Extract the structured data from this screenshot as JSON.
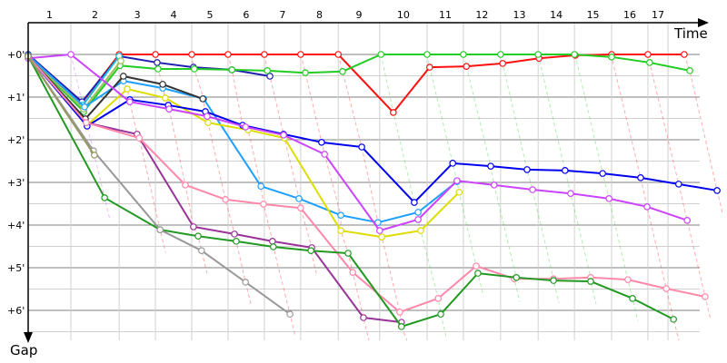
{
  "chart_data": {
    "type": "line",
    "title": "",
    "xlabel": "Time",
    "ylabel": "Gap",
    "y_unit": "minutes",
    "x_unit": "minutes",
    "ylim": [
      0,
      6.6
    ],
    "xlim": [
      0,
      16.4
    ],
    "y_ticks": [
      0,
      1,
      2,
      3,
      4,
      5,
      6
    ],
    "y_tick_labels": [
      "+0'",
      "+1'",
      "+2'",
      "+3'",
      "+4'",
      "+5'",
      "+6'"
    ],
    "lap_labels": [
      "1",
      "2",
      "3",
      "4",
      "5",
      "6",
      "7",
      "8",
      "9",
      "10",
      "11",
      "12",
      "13",
      "14",
      "15",
      "16",
      "17"
    ],
    "lap_boundaries": [
      0,
      1.0,
      2.13,
      2.98,
      3.83,
      4.68,
      5.53,
      6.38,
      7.26,
      8.23,
      9.34,
      10.19,
      11.06,
      11.94,
      12.79,
      13.66,
      14.51,
      14.98
    ],
    "grid": true,
    "series": [
      {
        "name": "red",
        "color": "#ff1010",
        "points": [
          [
            0,
            0
          ],
          [
            1.26,
            1.13
          ],
          [
            2.13,
            0
          ],
          [
            2.98,
            0
          ],
          [
            3.83,
            0
          ],
          [
            4.68,
            0
          ],
          [
            5.53,
            0
          ],
          [
            6.38,
            0
          ],
          [
            7.26,
            0
          ],
          [
            8.55,
            1.36
          ],
          [
            9.4,
            0.3
          ],
          [
            10.26,
            0.28
          ],
          [
            11.11,
            0.21
          ],
          [
            11.96,
            0.09
          ],
          [
            12.81,
            0.02
          ],
          [
            13.66,
            0
          ],
          [
            14.51,
            0
          ],
          [
            15.36,
            0
          ]
        ]
      },
      {
        "name": "navy",
        "color": "#2020b0",
        "points": [
          [
            0,
            0
          ],
          [
            1.26,
            1.11
          ],
          [
            2.13,
            0.04
          ],
          [
            3.02,
            0.19
          ],
          [
            3.87,
            0.3
          ],
          [
            4.77,
            0.36
          ],
          [
            5.66,
            0.51
          ]
        ]
      },
      {
        "name": "green",
        "color": "#22cc22",
        "points": [
          [
            0,
            0.04
          ],
          [
            1.3,
            1.34
          ],
          [
            2.15,
            0.26
          ],
          [
            3.04,
            0.34
          ],
          [
            3.89,
            0.34
          ],
          [
            4.77,
            0.36
          ],
          [
            5.6,
            0.38
          ],
          [
            6.49,
            0.43
          ],
          [
            7.36,
            0.4
          ],
          [
            8.26,
            0
          ],
          [
            9.34,
            0
          ],
          [
            10.19,
            0
          ],
          [
            11.06,
            0
          ],
          [
            11.94,
            0
          ],
          [
            12.79,
            0
          ],
          [
            13.66,
            0.06
          ],
          [
            14.55,
            0.19
          ],
          [
            15.49,
            0.38
          ]
        ]
      },
      {
        "name": "teal",
        "color": "#22bbcc",
        "points": [
          [
            0,
            0.02
          ],
          [
            1.28,
            1.19
          ],
          [
            2.13,
            0.04
          ]
        ]
      },
      {
        "name": "light-olive",
        "color": "#a0c060",
        "points": [
          [
            0,
            0.04
          ],
          [
            1.3,
            1.28
          ],
          [
            2.17,
            0.15
          ]
        ]
      },
      {
        "name": "light-blue",
        "color": "#1ea0ff",
        "points": [
          [
            0,
            0.02
          ],
          [
            1.32,
            1.23
          ],
          [
            2.23,
            0.62
          ],
          [
            3.15,
            0.79
          ],
          [
            4.11,
            1.04
          ],
          [
            5.45,
            3.09
          ],
          [
            6.34,
            3.38
          ],
          [
            7.32,
            3.77
          ],
          [
            8.19,
            3.94
          ],
          [
            9.13,
            3.7
          ],
          [
            10.04,
            2.98
          ]
        ]
      },
      {
        "name": "black",
        "color": "#333333",
        "points": [
          [
            0,
            0.04
          ],
          [
            1.34,
            1.51
          ],
          [
            2.23,
            0.51
          ],
          [
            3.15,
            0.7
          ],
          [
            4.09,
            1.04
          ]
        ]
      },
      {
        "name": "yellow",
        "color": "#dddd00",
        "points": [
          [
            0,
            0.04
          ],
          [
            1.38,
            1.66
          ],
          [
            2.32,
            0.81
          ],
          [
            3.21,
            1.02
          ],
          [
            4.21,
            1.6
          ],
          [
            5.15,
            1.77
          ],
          [
            6.0,
            1.96
          ],
          [
            7.32,
            4.13
          ],
          [
            8.28,
            4.28
          ],
          [
            9.19,
            4.13
          ],
          [
            10.09,
            3.23
          ]
        ]
      },
      {
        "name": "blue",
        "color": "#0000ee",
        "points": [
          [
            0,
            0.04
          ],
          [
            1.38,
            1.68
          ],
          [
            2.38,
            1.06
          ],
          [
            3.28,
            1.19
          ],
          [
            4.15,
            1.34
          ],
          [
            5.02,
            1.66
          ],
          [
            5.98,
            1.87
          ],
          [
            6.87,
            2.06
          ],
          [
            7.81,
            2.17
          ],
          [
            9.04,
            3.47
          ],
          [
            9.94,
            2.55
          ],
          [
            10.83,
            2.62
          ],
          [
            11.68,
            2.7
          ],
          [
            12.57,
            2.72
          ],
          [
            13.45,
            2.79
          ],
          [
            14.34,
            2.89
          ],
          [
            15.23,
            3.04
          ],
          [
            16.13,
            3.19
          ]
        ]
      },
      {
        "name": "violet",
        "color": "#cc44ff",
        "points": [
          [
            0,
            0.09
          ],
          [
            1.0,
            0
          ],
          [
            2.38,
            1.11
          ],
          [
            3.3,
            1.28
          ],
          [
            4.19,
            1.45
          ],
          [
            5.09,
            1.7
          ],
          [
            5.98,
            1.89
          ],
          [
            6.94,
            2.34
          ],
          [
            8.23,
            4.13
          ],
          [
            9.13,
            3.87
          ],
          [
            10.04,
            2.96
          ],
          [
            10.91,
            3.06
          ],
          [
            11.81,
            3.17
          ],
          [
            12.7,
            3.26
          ],
          [
            13.6,
            3.38
          ],
          [
            14.49,
            3.57
          ],
          [
            15.43,
            3.89
          ]
        ]
      },
      {
        "name": "dark-purple",
        "color": "#993399",
        "points": [
          [
            0,
            0.04
          ],
          [
            1.36,
            1.6
          ],
          [
            2.55,
            1.87
          ],
          [
            3.87,
            4.04
          ],
          [
            4.83,
            4.21
          ],
          [
            5.72,
            4.38
          ],
          [
            6.64,
            4.53
          ],
          [
            7.85,
            6.17
          ],
          [
            8.74,
            6.28
          ]
        ]
      },
      {
        "name": "pink",
        "color": "#ff88aa",
        "points": [
          [
            0,
            0.04
          ],
          [
            1.36,
            1.6
          ],
          [
            2.6,
            1.96
          ],
          [
            3.68,
            3.06
          ],
          [
            4.62,
            3.4
          ],
          [
            5.51,
            3.51
          ],
          [
            6.38,
            3.6
          ],
          [
            7.6,
            5.11
          ],
          [
            8.7,
            6.04
          ],
          [
            9.6,
            5.72
          ],
          [
            10.49,
            4.96
          ],
          [
            11.38,
            5.26
          ],
          [
            12.3,
            5.26
          ],
          [
            13.17,
            5.23
          ],
          [
            14.04,
            5.28
          ],
          [
            14.94,
            5.49
          ],
          [
            15.85,
            5.68
          ]
        ]
      },
      {
        "name": "dark-green",
        "color": "#229922",
        "points": [
          [
            0,
            0.04
          ],
          [
            1.79,
            3.36
          ],
          [
            3.09,
            4.11
          ],
          [
            3.98,
            4.26
          ],
          [
            4.87,
            4.38
          ],
          [
            5.74,
            4.51
          ],
          [
            6.62,
            4.6
          ],
          [
            7.49,
            4.66
          ],
          [
            8.74,
            6.38
          ],
          [
            9.66,
            6.09
          ],
          [
            10.53,
            5.13
          ],
          [
            11.43,
            5.23
          ],
          [
            12.3,
            5.3
          ],
          [
            13.17,
            5.32
          ],
          [
            14.15,
            5.72
          ],
          [
            15.11,
            6.21
          ]
        ]
      },
      {
        "name": "gray",
        "color": "#999999",
        "points": [
          [
            0,
            0.04
          ],
          [
            1.53,
            2.26
          ],
          [
            3.09,
            4.11
          ],
          [
            4.06,
            4.6
          ],
          [
            5.09,
            5.34
          ],
          [
            6.13,
            6.09
          ]
        ]
      },
      {
        "name": "khaki",
        "color": "#999966",
        "points": [
          [
            0,
            0.04
          ],
          [
            1.55,
            2.36
          ]
        ]
      }
    ]
  }
}
